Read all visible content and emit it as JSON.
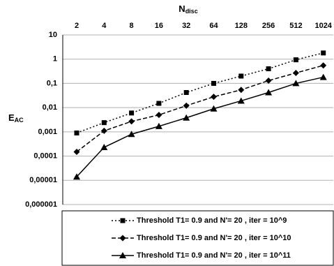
{
  "chart_data": {
    "type": "line",
    "x_label": [
      "N",
      "disc"
    ],
    "y_label": [
      "E",
      "AC"
    ],
    "categories": [
      "2",
      "4",
      "8",
      "16",
      "32",
      "64",
      "128",
      "256",
      "512",
      "1024"
    ],
    "log_y": true,
    "grid": true,
    "ylim": [
      1e-06,
      10
    ],
    "yticks": [
      10,
      1,
      {
        "value": 0.1,
        "label": "0,1"
      },
      {
        "value": 0.01,
        "label": "0,01"
      },
      {
        "value": 0.001,
        "label": "0,001"
      },
      {
        "value": 0.0001,
        "label": "0,0001"
      },
      {
        "value": 1e-05,
        "label": "0,00001"
      },
      {
        "value": 1e-06,
        "label": "0,000001"
      }
    ],
    "legend": "bottom",
    "series": [
      {
        "name": "Threshold T1= 0.9 and N'= 20 , iter = 10^9",
        "color": "#000000",
        "marker": "square",
        "line_style": "dotted",
        "values": [
          0.0009,
          0.0024,
          0.006,
          0.015,
          0.042,
          0.1,
          0.2,
          0.4,
          0.94,
          1.8
        ]
      },
      {
        "name": "Threshold T1= 0.9 and N'= 20 , iter = 10^10",
        "color": "#000000",
        "marker": "diamond",
        "line_style": "dashed",
        "values": [
          0.00015,
          0.0011,
          0.0027,
          0.005,
          0.012,
          0.028,
          0.054,
          0.13,
          0.27,
          0.55
        ]
      },
      {
        "name": "Threshold T1= 0.9 and N'= 20 , iter = 10^11",
        "color": "#000000",
        "marker": "triangle",
        "line_style": "solid",
        "values": [
          1.4e-05,
          0.00023,
          0.0008,
          0.0017,
          0.0038,
          0.009,
          0.019,
          0.042,
          0.1,
          0.18
        ]
      }
    ]
  }
}
